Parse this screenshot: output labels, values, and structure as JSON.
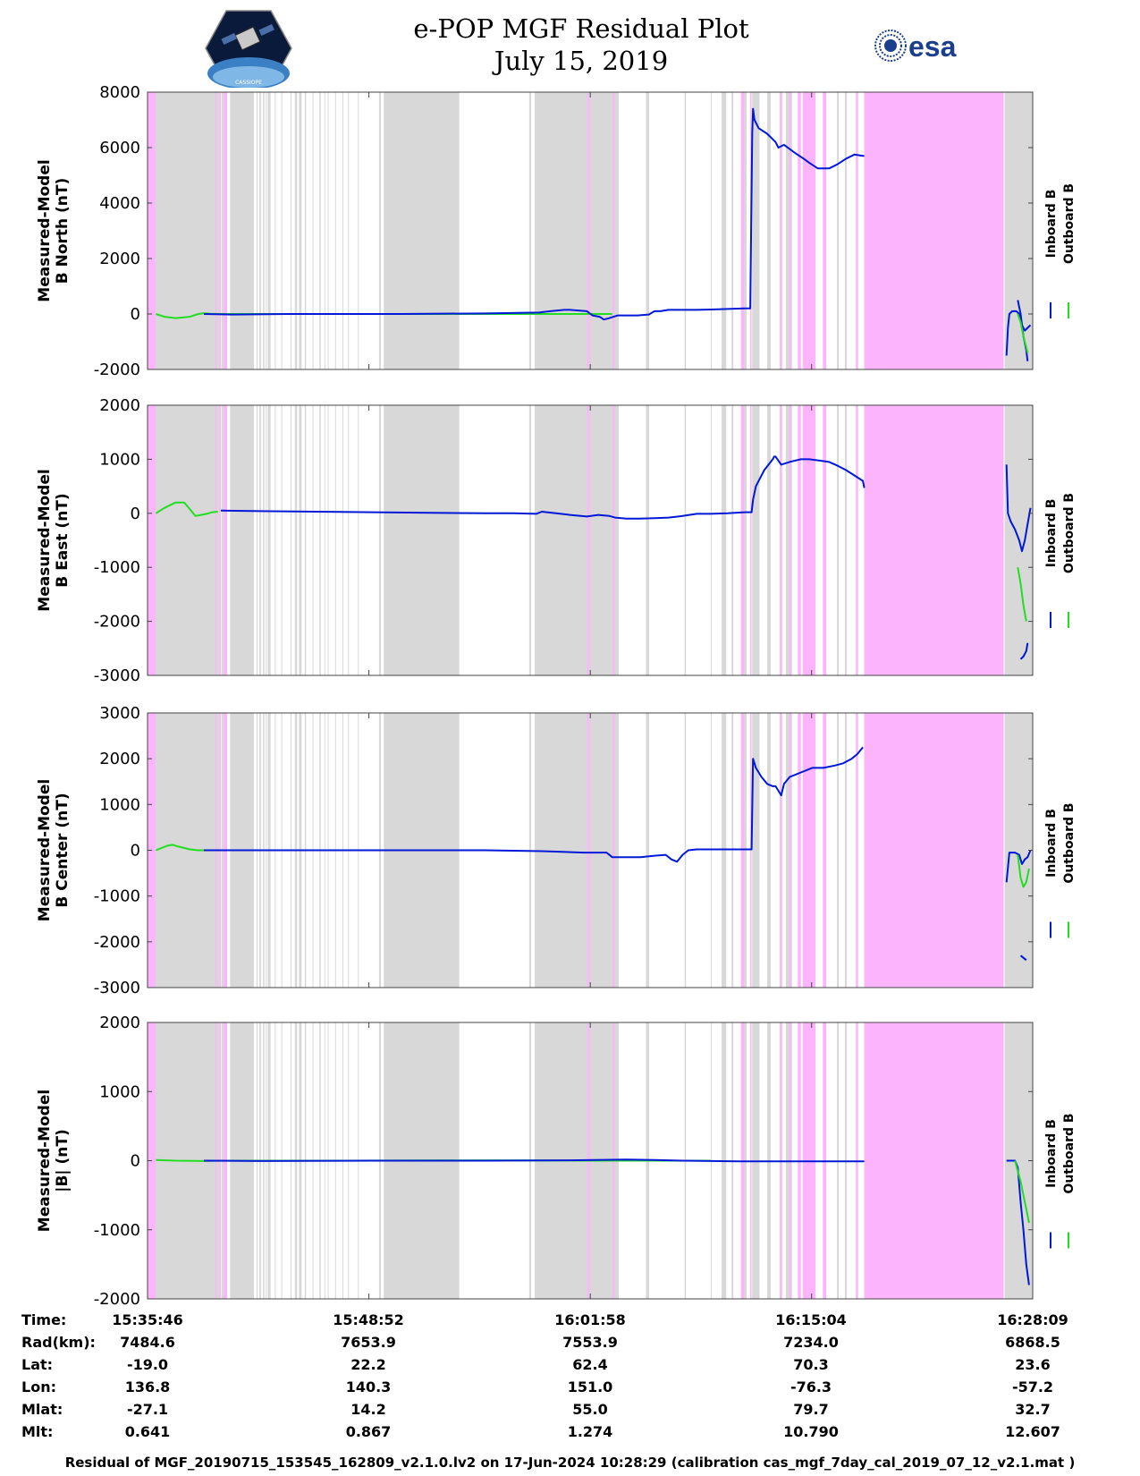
{
  "header": {
    "title_line1": "e-POP MGF Residual Plot",
    "title_line2": "July 15, 2019",
    "left_logo_text": "CASSIOPE",
    "right_logo_text": "esa"
  },
  "colors": {
    "inboard": "#0018d8",
    "outboard": "#22dd22",
    "gray_band": "#d8d8d8",
    "pink_band": "#fcb5fc"
  },
  "legend": [
    "Inboard B",
    "Outboard B"
  ],
  "x_axis": {
    "start_sec": 0,
    "end_sec": 3143,
    "tick_seconds": [
      0,
      786,
      1572,
      2358,
      3143
    ]
  },
  "bands": {
    "gray": [
      [
        20,
        257
      ],
      [
        262,
        273
      ],
      [
        293,
        378
      ],
      [
        387,
        391
      ],
      [
        397,
        403
      ],
      [
        410,
        415
      ],
      [
        420,
        423
      ],
      [
        427,
        437
      ],
      [
        452,
        455
      ],
      [
        475,
        477
      ],
      [
        508,
        511
      ],
      [
        523,
        531
      ],
      [
        538,
        547
      ],
      [
        558,
        563
      ],
      [
        586,
        589
      ],
      [
        610,
        615
      ],
      [
        628,
        631
      ],
      [
        640,
        643
      ],
      [
        666,
        669
      ],
      [
        692,
        695
      ],
      [
        712,
        714
      ],
      [
        747,
        749
      ],
      [
        822,
        829
      ],
      [
        839,
        1107
      ],
      [
        1355,
        1362
      ],
      [
        1375,
        1673
      ],
      [
        1770,
        1781
      ],
      [
        1907,
        1912
      ],
      [
        2000,
        2003
      ],
      [
        2038,
        2055
      ],
      [
        2074,
        2080
      ],
      [
        2110,
        2127
      ],
      [
        2147,
        2173
      ],
      [
        2200,
        2213
      ],
      [
        2244,
        2253
      ],
      [
        2266,
        2288
      ],
      [
        2336,
        2344
      ],
      [
        2399,
        2406
      ],
      [
        2448,
        2454
      ],
      [
        2476,
        2483
      ],
      [
        2545,
        2551
      ],
      [
        3043,
        3143
      ]
    ],
    "pink": [
      [
        0,
        28
      ],
      [
        241,
        245
      ],
      [
        255,
        260
      ],
      [
        272,
        283
      ],
      [
        1561,
        1567
      ],
      [
        1570,
        1573
      ],
      [
        1651,
        1658
      ],
      [
        2107,
        2118
      ],
      [
        2140,
        2145
      ],
      [
        2247,
        2253
      ],
      [
        2279,
        2285
      ],
      [
        2309,
        2320
      ],
      [
        2326,
        2372
      ],
      [
        2398,
        2410
      ],
      [
        2515,
        2523
      ],
      [
        2545,
        3040
      ]
    ]
  },
  "chart_data": [
    {
      "type": "line",
      "ylabel": [
        "Measured-Model",
        "B North (nT)"
      ],
      "ylim": [
        -2000,
        8000
      ],
      "yticks": [
        -2000,
        0,
        2000,
        4000,
        6000,
        8000
      ],
      "series": [
        {
          "name": "Outboard B",
          "x": [
            30,
            60,
            100,
            150,
            180,
            200,
            220,
            250,
            600,
            1000,
            1200,
            1350,
            1500,
            1650
          ],
          "y": [
            0,
            -100,
            -150,
            -100,
            0,
            30,
            10,
            0,
            0,
            0,
            0,
            0,
            0,
            0
          ]
        },
        {
          "name": "Inboard B",
          "x": [
            200,
            300,
            500,
            700,
            900,
            1000,
            1200,
            1390,
            1430,
            1480,
            1500,
            1560,
            1580,
            1605,
            1620,
            1640,
            1670,
            1700,
            1740,
            1780,
            1800,
            1820,
            1850,
            1900,
            1950,
            2000,
            2060,
            2120,
            2140,
            2147,
            2150,
            2155,
            2170,
            2200,
            2220,
            2230,
            2240,
            2260,
            2300,
            2330,
            2350,
            2380,
            2420,
            2450,
            2480,
            2510,
            2540,
            2545
          ],
          "y": [
            0,
            -20,
            0,
            0,
            0,
            10,
            20,
            50,
            100,
            150,
            150,
            100,
            -50,
            -100,
            -200,
            -150,
            -50,
            -50,
            -50,
            -20,
            100,
            100,
            150,
            150,
            150,
            160,
            180,
            200,
            200,
            6500,
            7400,
            7000,
            6700,
            6500,
            6300,
            6200,
            6000,
            6100,
            5800,
            5600,
            5450,
            5250,
            5250,
            5400,
            5600,
            5750,
            5700,
            5700
          ]
        },
        {
          "name": "Inboard B",
          "x": [
            3050,
            3055,
            3060,
            3070,
            3085,
            3095,
            3105,
            3115,
            3125,
            3135
          ],
          "y": [
            -1500,
            -500,
            0,
            100,
            100,
            0,
            -400,
            -600,
            -500,
            -400
          ]
        },
        {
          "name": "Inboard B",
          "x": [
            3090,
            3100,
            3110,
            3120,
            3125
          ],
          "y": [
            500,
            0,
            -800,
            -1300,
            -1700
          ]
        },
        {
          "name": "Outboard B",
          "x": [
            3090,
            3100,
            3110,
            3120,
            3125
          ],
          "y": [
            0,
            -300,
            -800,
            -1200,
            -1400
          ]
        }
      ]
    },
    {
      "type": "line",
      "ylabel": [
        "Measured-Model",
        "B East (nT)"
      ],
      "ylim": [
        -3000,
        2000
      ],
      "yticks": [
        -3000,
        -2000,
        -1000,
        0,
        1000,
        2000
      ],
      "series": [
        {
          "name": "Outboard B",
          "x": [
            30,
            60,
            80,
            100,
            130,
            150,
            170,
            190,
            210,
            230,
            250
          ],
          "y": [
            0,
            100,
            150,
            200,
            200,
            80,
            -50,
            -30,
            -10,
            20,
            30
          ]
        },
        {
          "name": "Inboard B",
          "x": [
            260,
            400,
            600,
            800,
            1000,
            1200,
            1300,
            1380,
            1400,
            1450,
            1500,
            1560,
            1600,
            1640,
            1660,
            1700,
            1750,
            1800,
            1850,
            1900,
            1950,
            2000,
            2060,
            2120,
            2145,
            2150,
            2160,
            2190,
            2220,
            2225,
            2230,
            2250,
            2280,
            2320,
            2350,
            2380,
            2420,
            2450,
            2480,
            2510,
            2540,
            2545
          ],
          "y": [
            50,
            40,
            30,
            20,
            10,
            0,
            0,
            -10,
            30,
            0,
            -30,
            -60,
            -30,
            -50,
            -80,
            -100,
            -100,
            -90,
            -80,
            -50,
            -10,
            -10,
            0,
            20,
            20,
            250,
            500,
            800,
            1000,
            1050,
            1050,
            900,
            950,
            1000,
            1000,
            980,
            950,
            880,
            800,
            700,
            600,
            470
          ]
        },
        {
          "name": "Inboard B",
          "x": [
            3050,
            3055,
            3065,
            3080,
            3095,
            3105,
            3115,
            3125,
            3135
          ],
          "y": [
            900,
            0,
            -150,
            -300,
            -500,
            -700,
            -500,
            -200,
            100
          ]
        },
        {
          "name": "Inboard B",
          "x": [
            3100,
            3110,
            3120,
            3125
          ],
          "y": [
            -2700,
            -2650,
            -2550,
            -2400
          ]
        },
        {
          "name": "Outboard B",
          "x": [
            3090,
            3100,
            3110,
            3120
          ],
          "y": [
            -1000,
            -1300,
            -1700,
            -2000
          ]
        }
      ]
    },
    {
      "type": "line",
      "ylabel": [
        "Measured-Model",
        "B Center (nT)"
      ],
      "ylim": [
        -3000,
        3000
      ],
      "yticks": [
        -3000,
        -2000,
        -1000,
        0,
        1000,
        2000,
        3000
      ],
      "series": [
        {
          "name": "Outboard B",
          "x": [
            30,
            50,
            70,
            90,
            110,
            130,
            150,
            180,
            210,
            250
          ],
          "y": [
            0,
            50,
            100,
            120,
            80,
            50,
            20,
            0,
            0,
            0
          ]
        },
        {
          "name": "Inboard B",
          "x": [
            200,
            300,
            500,
            700,
            900,
            1000,
            1200,
            1400,
            1550,
            1630,
            1650,
            1700,
            1750,
            1800,
            1840,
            1860,
            1880,
            1900,
            1920,
            1950,
            2000,
            2060,
            2120,
            2145,
            2150,
            2160,
            2180,
            2200,
            2220,
            2230,
            2240,
            2250,
            2260,
            2280,
            2320,
            2360,
            2400,
            2440,
            2470,
            2500,
            2520,
            2540
          ],
          "y": [
            0,
            0,
            0,
            0,
            0,
            0,
            0,
            -20,
            -50,
            -50,
            -150,
            -150,
            -150,
            -120,
            -100,
            -200,
            -250,
            -100,
            0,
            20,
            20,
            20,
            20,
            20,
            2000,
            1800,
            1600,
            1450,
            1400,
            1400,
            1300,
            1200,
            1450,
            1600,
            1700,
            1800,
            1800,
            1850,
            1900,
            2000,
            2100,
            2250
          ]
        },
        {
          "name": "Inboard B",
          "x": [
            3050,
            3060,
            3080,
            3095,
            3105,
            3115,
            3125,
            3135
          ],
          "y": [
            -700,
            -50,
            -50,
            -100,
            -300,
            -200,
            -150,
            0
          ]
        },
        {
          "name": "Inboard B",
          "x": [
            3100,
            3110,
            3120
          ],
          "y": [
            -2300,
            -2350,
            -2400
          ]
        },
        {
          "name": "Outboard B",
          "x": [
            3090,
            3100,
            3110,
            3120,
            3130
          ],
          "y": [
            -100,
            -600,
            -800,
            -700,
            -400
          ]
        }
      ]
    },
    {
      "type": "line",
      "ylabel": [
        "Measured-Model",
        "|B| (nT)"
      ],
      "ylim": [
        -2000,
        2000
      ],
      "yticks": [
        -2000,
        -1000,
        0,
        1000,
        2000
      ],
      "series": [
        {
          "name": "Outboard B",
          "x": [
            30,
            100,
            200,
            260,
            700,
            1200,
            1600,
            2000
          ],
          "y": [
            10,
            0,
            -5,
            0,
            0,
            5,
            0,
            0
          ]
        },
        {
          "name": "Inboard B",
          "x": [
            200,
            400,
            800,
            1200,
            1500,
            1700,
            1800,
            1900,
            2100,
            2300,
            2545
          ],
          "y": [
            0,
            -5,
            0,
            0,
            5,
            15,
            10,
            0,
            -10,
            -10,
            -10
          ]
        },
        {
          "name": "Inboard B",
          "x": [
            3050,
            3080,
            3090,
            3100,
            3110,
            3120,
            3130
          ],
          "y": [
            0,
            0,
            -100,
            -600,
            -1000,
            -1500,
            -1800
          ]
        },
        {
          "name": "Outboard B",
          "x": [
            3080,
            3090,
            3100,
            3110,
            3120,
            3130
          ],
          "y": [
            0,
            -150,
            -300,
            -500,
            -700,
            -900
          ]
        }
      ]
    }
  ],
  "info_table": {
    "labels": [
      "Time:",
      "Rad(km):",
      "Lat:",
      "Lon:",
      "Mlat:",
      "Mlt:"
    ],
    "columns": [
      [
        "15:35:46",
        "7484.6",
        "-19.0",
        "136.8",
        "-27.1",
        "0.641"
      ],
      [
        "15:48:52",
        "7653.9",
        "22.2",
        "140.3",
        "14.2",
        "0.867"
      ],
      [
        "16:01:58",
        "7553.9",
        "62.4",
        "151.0",
        "55.0",
        "1.274"
      ],
      [
        "16:15:04",
        "7234.0",
        "70.3",
        "-76.3",
        "79.7",
        "10.790"
      ],
      [
        "16:28:09",
        "6868.5",
        "23.6",
        "-57.2",
        "32.7",
        "12.607"
      ]
    ]
  },
  "footer": "Residual of MGF_20190715_153545_162809_v2.1.0.lv2 on 17-Jun-2024 10:28:29 (calibration cas_mgf_7day_cal_2019_07_12_v2.1.mat )"
}
